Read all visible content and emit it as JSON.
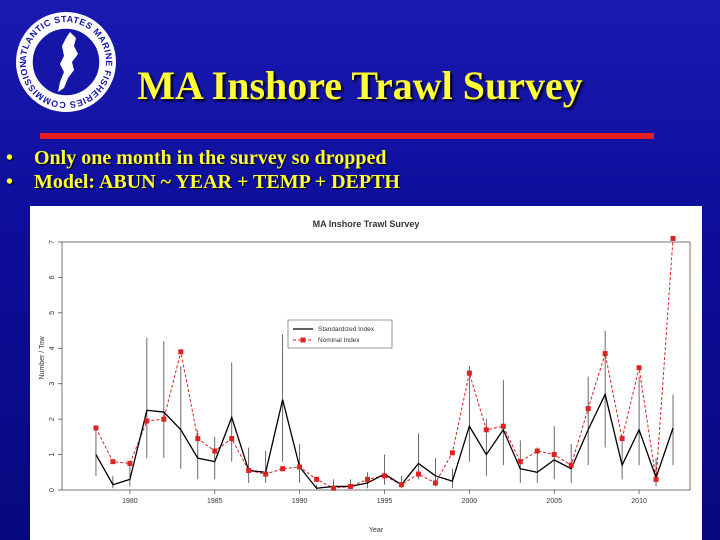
{
  "slide": {
    "title": "MA Inshore Trawl Survey",
    "bullets": [
      "Only one month in the survey so dropped",
      "Model: ABUN ~ YEAR + TEMP + DEPTH"
    ],
    "logo": {
      "icon": "asmfc-seal-icon",
      "text": "ATLANTIC STATES MARINE FISHERIES COMMISSION"
    },
    "colors": {
      "title": "#ffff33",
      "rule": "#e81e1e",
      "background": "#0d0d9a"
    }
  },
  "chart_data": {
    "type": "line",
    "title": "MA Inshore Trawl Survey",
    "xlabel": "Year",
    "ylabel": "Number / Tow",
    "xlim": [
      1976,
      2013
    ],
    "ylim": [
      0,
      7
    ],
    "xticks": [
      1980,
      1985,
      1990,
      1995,
      2000,
      2005,
      2010
    ],
    "yticks": [
      0,
      1,
      2,
      3,
      4,
      5,
      6,
      7
    ],
    "legend_position": "center",
    "grid": false,
    "x": [
      1978,
      1979,
      1980,
      1981,
      1982,
      1983,
      1984,
      1985,
      1986,
      1987,
      1988,
      1989,
      1990,
      1991,
      1992,
      1993,
      1994,
      1995,
      1996,
      1997,
      1998,
      1999,
      2000,
      2001,
      2002,
      2003,
      2004,
      2005,
      2006,
      2007,
      2008,
      2009,
      2010,
      2011,
      2012
    ],
    "series": [
      {
        "name": "Standardized Index",
        "color": "#000000",
        "style": "solid",
        "values": [
          1.0,
          0.15,
          0.3,
          2.25,
          2.2,
          1.7,
          0.9,
          0.8,
          2.05,
          0.55,
          0.5,
          2.55,
          0.65,
          0.05,
          0.1,
          0.1,
          0.2,
          0.45,
          0.15,
          0.75,
          0.4,
          0.25,
          1.8,
          1.0,
          1.7,
          0.6,
          0.5,
          0.85,
          0.6,
          1.7,
          2.7,
          0.7,
          1.7,
          0.35,
          1.75
        ],
        "error_low": [
          0.4,
          0.05,
          0.1,
          0.9,
          0.9,
          0.6,
          0.3,
          0.3,
          0.8,
          0.2,
          0.2,
          0.8,
          0.2,
          0.02,
          0.03,
          0.03,
          0.05,
          0.15,
          0.05,
          0.3,
          0.1,
          0.05,
          0.8,
          0.4,
          0.7,
          0.2,
          0.2,
          0.3,
          0.2,
          0.7,
          1.2,
          0.3,
          0.7,
          0.1,
          0.7
        ],
        "error_high": [
          1.8,
          0.4,
          0.8,
          4.3,
          4.2,
          3.5,
          1.7,
          1.5,
          3.6,
          1.2,
          1.1,
          4.4,
          1.3,
          0.15,
          0.3,
          0.3,
          0.5,
          1.0,
          0.4,
          1.6,
          0.9,
          0.6,
          3.5,
          2.0,
          3.1,
          1.4,
          1.2,
          1.8,
          1.3,
          3.2,
          4.5,
          1.5,
          3.2,
          0.9,
          2.7
        ]
      },
      {
        "name": "Nominal Index",
        "color": "#dd2222",
        "style": "dashed",
        "values": [
          1.75,
          0.8,
          0.75,
          1.95,
          2.0,
          3.9,
          1.45,
          1.1,
          1.45,
          0.55,
          0.45,
          0.6,
          0.65,
          0.3,
          0.05,
          0.1,
          0.3,
          0.4,
          0.15,
          0.45,
          0.2,
          1.05,
          3.3,
          1.7,
          1.8,
          0.8,
          1.1,
          1.0,
          0.7,
          2.3,
          3.85,
          1.45,
          3.45,
          0.3,
          7.1
        ]
      }
    ]
  }
}
